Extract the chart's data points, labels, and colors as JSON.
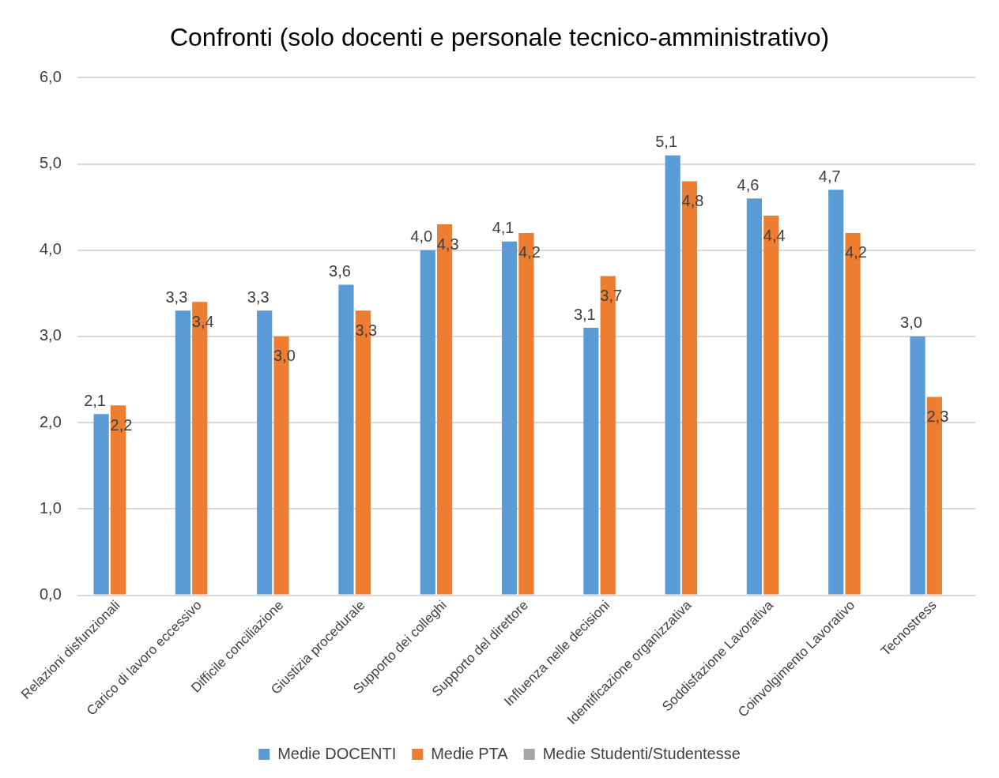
{
  "chart_data": {
    "type": "bar",
    "title": "Confronti (solo docenti e personale tecnico-amministrativo)",
    "categories": [
      "Relazioni disfunzionali",
      "Carico di lavoro eccessivo",
      "Difficile conciliazione",
      "Giustizia procedurale",
      "Supporto dei colleghi",
      "Supporto del direttore",
      "Influenza nelle decisioni",
      "Identificazione organizzativa",
      "Soddisfazione Lavorativa",
      "Coinvolgimento Lavorativo",
      "Tecnostress"
    ],
    "series": [
      {
        "name": "Medie DOCENTI",
        "color": "#5b9bd5",
        "values": [
          2.1,
          3.3,
          3.3,
          3.6,
          4.0,
          4.1,
          3.1,
          5.1,
          4.6,
          4.7,
          3.0
        ],
        "value_labels": [
          "2,1",
          "3,3",
          "3,3",
          "3,6",
          "4,0",
          "4,1",
          "3,1",
          "5,1",
          "4,6",
          "4,7",
          "3,0"
        ]
      },
      {
        "name": "Medie PTA",
        "color": "#ed7d31",
        "values": [
          2.2,
          3.4,
          3.0,
          3.3,
          4.3,
          4.2,
          3.7,
          4.8,
          4.4,
          4.2,
          2.3
        ],
        "value_labels": [
          "2,2",
          "3,4",
          "3,0",
          "3,3",
          "4,3",
          "4,2",
          "3,7",
          "4,8",
          "4,4",
          "4,2",
          "2,3"
        ]
      },
      {
        "name": "Medie Studenti/Studentesse",
        "color": "#a5a5a5",
        "values": [
          null,
          null,
          null,
          null,
          null,
          null,
          null,
          null,
          null,
          null,
          null
        ]
      }
    ],
    "ylim": [
      0,
      6
    ],
    "yticks": [
      {
        "value": 0,
        "label": "0,0"
      },
      {
        "value": 1,
        "label": "1,0"
      },
      {
        "value": 2,
        "label": "2,0"
      },
      {
        "value": 3,
        "label": "3,0"
      },
      {
        "value": 4,
        "label": "4,0"
      },
      {
        "value": 5,
        "label": "5,0"
      },
      {
        "value": 6,
        "label": "6,0"
      }
    ],
    "grid": "y",
    "legend": "bottom"
  }
}
